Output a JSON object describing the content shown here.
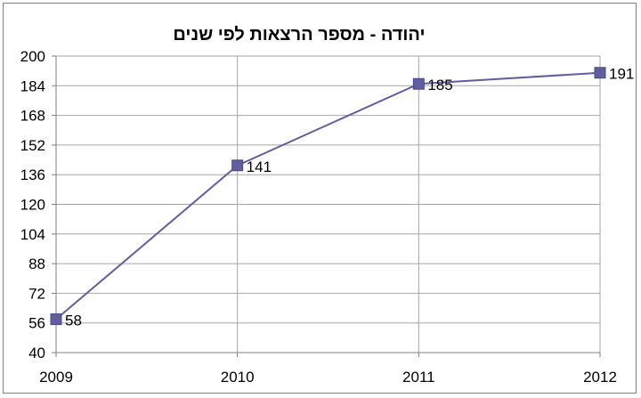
{
  "chart_data": {
    "type": "line",
    "title": "יהודה - מספר הרצאות לפי שנים",
    "x": [
      "2009",
      "2010",
      "2011",
      "2012"
    ],
    "series": [
      {
        "values": [
          58,
          141,
          185,
          191
        ]
      }
    ],
    "data_labels": [
      "58",
      "141",
      "185",
      "191"
    ],
    "xlabel": "",
    "ylabel": "",
    "ylim": [
      40,
      200
    ],
    "yticks": [
      40,
      56,
      72,
      88,
      104,
      120,
      136,
      152,
      168,
      184,
      200
    ],
    "grid": true,
    "legend": "none",
    "colors": {
      "line": "#5f5f9f",
      "marker": "#5f5f9f",
      "grid": "#a6a6a6",
      "axis": "#7f7f7f"
    }
  }
}
